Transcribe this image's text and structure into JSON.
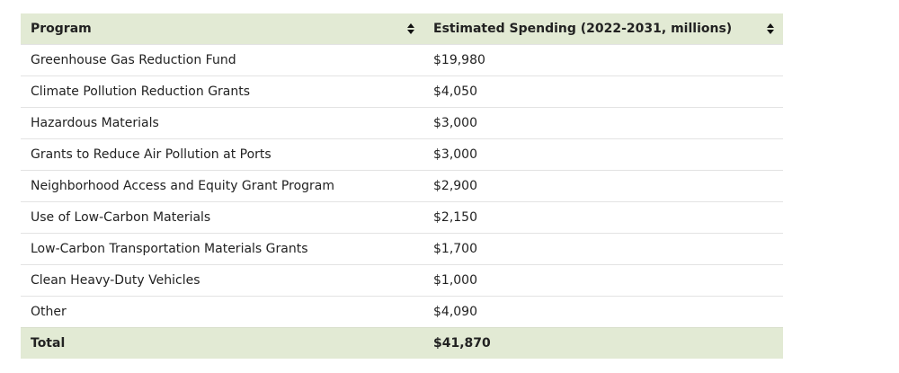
{
  "table": {
    "headers": [
      {
        "label": "Program",
        "sort_icon": "sort-updown-icon"
      },
      {
        "label": "Estimated Spending (2022-2031, millions)",
        "sort_icon": "sort-updown-icon"
      }
    ],
    "rows": [
      {
        "program": "Greenhouse Gas Reduction Fund",
        "spending": "$19,980"
      },
      {
        "program": "Climate Pollution Reduction Grants",
        "spending": "$4,050"
      },
      {
        "program": "Hazardous Materials",
        "spending": "$3,000"
      },
      {
        "program": "Grants to Reduce Air Pollution at Ports",
        "spending": "$3,000"
      },
      {
        "program": "Neighborhood Access and Equity Grant Program",
        "spending": "$2,900"
      },
      {
        "program": "Use of Low-Carbon Materials",
        "spending": "$2,150"
      },
      {
        "program": "Low-Carbon Transportation Materials Grants",
        "spending": "$1,700"
      },
      {
        "program": "Clean Heavy-Duty Vehicles",
        "spending": "$1,000"
      },
      {
        "program": "Other",
        "spending": "$4,090"
      }
    ],
    "total": {
      "program": "Total",
      "spending": "$41,870"
    }
  },
  "colors": {
    "header_bg": "#e2ead4",
    "row_border": "#e3e3e3",
    "text": "#222222"
  }
}
